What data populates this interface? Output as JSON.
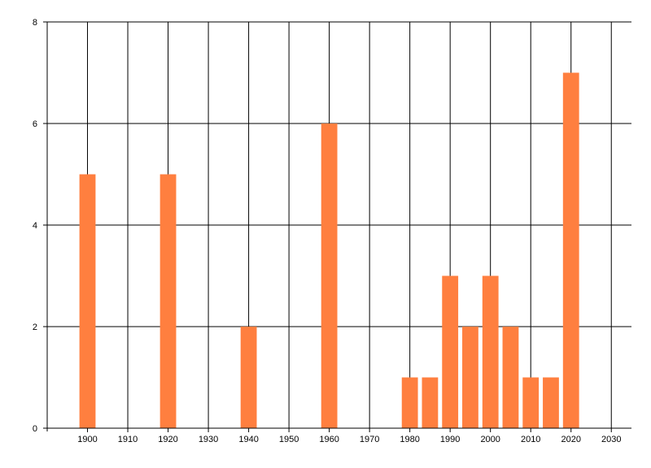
{
  "chart_data": {
    "type": "bar",
    "title": "",
    "xlabel": "",
    "ylabel": "",
    "x": [
      1900,
      1920,
      1940,
      1960,
      1980,
      1985,
      1990,
      1995,
      2000,
      2005,
      2010,
      2015,
      2020
    ],
    "values": [
      5,
      5,
      2,
      6,
      1,
      1,
      3,
      2,
      3,
      2,
      1,
      1,
      7
    ],
    "xlim": [
      1890,
      2035
    ],
    "ylim": [
      0,
      8
    ],
    "x_ticks": [
      1900,
      1910,
      1920,
      1930,
      1940,
      1950,
      1960,
      1970,
      1980,
      1990,
      2000,
      2010,
      2020,
      2030
    ],
    "y_ticks": [
      0,
      2,
      4,
      6,
      8
    ],
    "bar_width_years": 4,
    "grid": true,
    "legend": "none",
    "bar_color": "#ff7f3f",
    "grid_color": "#000000"
  }
}
